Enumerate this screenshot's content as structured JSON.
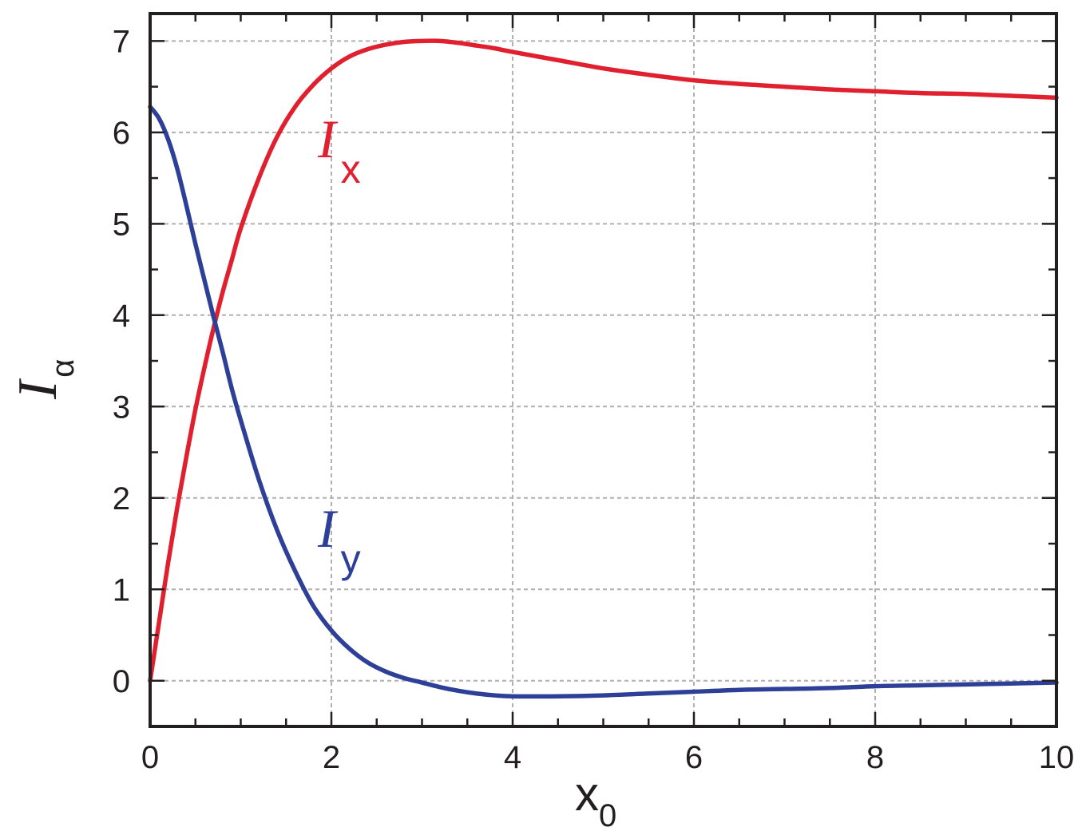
{
  "chart_data": {
    "type": "line",
    "xlabel": {
      "main": "x",
      "sub": "0"
    },
    "ylabel": {
      "main": "I",
      "sub": "α"
    },
    "xlim": [
      0,
      10
    ],
    "ylim": [
      -0.5,
      7.3
    ],
    "xticks": [
      0,
      2,
      4,
      6,
      8,
      10
    ],
    "yticks": [
      0,
      1,
      2,
      3,
      4,
      5,
      6,
      7
    ],
    "grid": true,
    "colors": {
      "Ix": "#e0202e",
      "Iy": "#2e3f98",
      "axis": "#231f20",
      "grid": "#b0b0b0"
    },
    "series": [
      {
        "id": "Ix",
        "label_main": "I",
        "label_sub": "x",
        "x": [
          0,
          0.1,
          0.2,
          0.3,
          0.4,
          0.5,
          0.6,
          0.7,
          0.8,
          0.9,
          1.0,
          1.2,
          1.4,
          1.6,
          1.8,
          2.0,
          2.2,
          2.4,
          2.6,
          2.8,
          3.0,
          3.2,
          3.4,
          3.6,
          3.8,
          4.0,
          4.5,
          5.0,
          5.5,
          6.0,
          6.5,
          7.0,
          7.5,
          8.0,
          8.5,
          9.0,
          9.5,
          10.0
        ],
        "y": [
          0.0,
          0.65,
          1.3,
          1.9,
          2.45,
          2.97,
          3.43,
          3.86,
          4.25,
          4.6,
          4.95,
          5.5,
          5.95,
          6.28,
          6.52,
          6.7,
          6.83,
          6.91,
          6.96,
          6.99,
          7.0,
          7.0,
          6.98,
          6.95,
          6.92,
          6.88,
          6.79,
          6.7,
          6.63,
          6.57,
          6.53,
          6.5,
          6.47,
          6.45,
          6.43,
          6.42,
          6.4,
          6.38
        ]
      },
      {
        "id": "Iy",
        "label_main": "I",
        "label_sub": "y",
        "x": [
          0,
          0.1,
          0.2,
          0.3,
          0.4,
          0.5,
          0.6,
          0.7,
          0.8,
          0.9,
          1.0,
          1.2,
          1.4,
          1.6,
          1.8,
          2.0,
          2.2,
          2.4,
          2.6,
          2.8,
          3.0,
          3.2,
          3.4,
          3.6,
          3.8,
          4.0,
          4.5,
          5.0,
          5.5,
          6.0,
          6.5,
          7.0,
          7.5,
          8.0,
          8.5,
          9.0,
          9.5,
          10.0
        ],
        "y": [
          6.28,
          6.15,
          5.92,
          5.6,
          5.2,
          4.78,
          4.38,
          3.98,
          3.6,
          3.2,
          2.85,
          2.2,
          1.65,
          1.2,
          0.82,
          0.55,
          0.35,
          0.2,
          0.1,
          0.03,
          -0.02,
          -0.07,
          -0.11,
          -0.14,
          -0.16,
          -0.17,
          -0.17,
          -0.16,
          -0.14,
          -0.12,
          -0.1,
          -0.09,
          -0.08,
          -0.06,
          -0.05,
          -0.04,
          -0.03,
          -0.02
        ]
      }
    ]
  }
}
